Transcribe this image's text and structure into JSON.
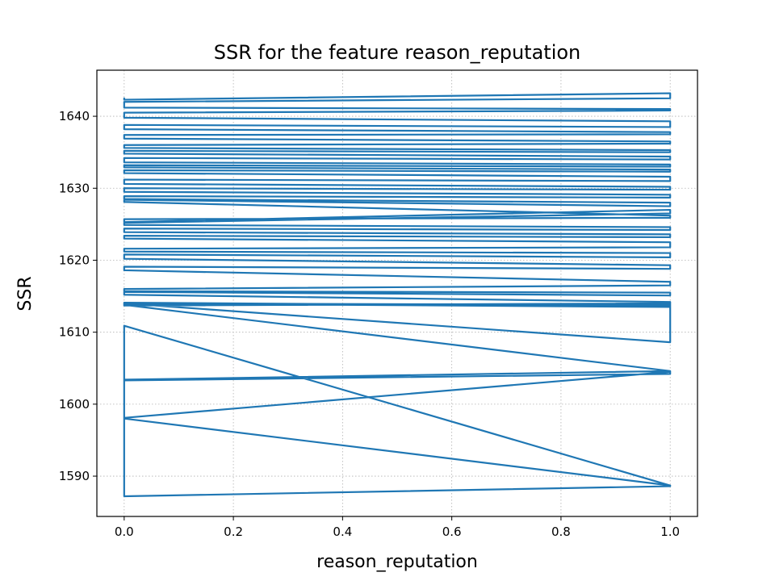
{
  "chart_data": {
    "type": "line",
    "title": "SSR for the feature reason_reputation",
    "xlabel": "reason_reputation",
    "ylabel": "SSR",
    "xlim": [
      -0.05,
      1.05
    ],
    "ylim": [
      1584.4,
      1646.4
    ],
    "xticks": [
      0.0,
      0.2,
      0.4,
      0.6,
      0.8,
      1.0
    ],
    "xtick_labels": [
      "0.0",
      "0.2",
      "0.4",
      "0.6",
      "0.8",
      "1.0"
    ],
    "yticks": [
      1590,
      1600,
      1610,
      1620,
      1630,
      1640
    ],
    "ytick_labels": [
      "1590",
      "1600",
      "1610",
      "1620",
      "1630",
      "1640"
    ],
    "grid": true,
    "legend": "none",
    "color": "#1f77b4",
    "series": [
      {
        "x": [
          0,
          0,
          1,
          1,
          0,
          0,
          1,
          1,
          0,
          0,
          1,
          1,
          0,
          0,
          1,
          1,
          0,
          0,
          1,
          1,
          0,
          0,
          1,
          1,
          0,
          0,
          1,
          1,
          0,
          0,
          1,
          1,
          0,
          0,
          1,
          1,
          0,
          0,
          1,
          1,
          0,
          0,
          1,
          1,
          0,
          0,
          1,
          1,
          0,
          0,
          1,
          1,
          0,
          0,
          1,
          1,
          0,
          0,
          1,
          1,
          0,
          0,
          1,
          1,
          0,
          0,
          1,
          1,
          0,
          0,
          1,
          1,
          0,
          0,
          1,
          1,
          0,
          0,
          1,
          1,
          0,
          0,
          1,
          1,
          0,
          0,
          1,
          1,
          0,
          0,
          1,
          1,
          0,
          0,
          1,
          1,
          0,
          0,
          1,
          1,
          0,
          0,
          1,
          1,
          0,
          0,
          1,
          1,
          0,
          0,
          1,
          1,
          0,
          0,
          1,
          1,
          0,
          0,
          1,
          1
        ],
        "y": [
          1642.5,
          1642.3,
          1643.2,
          1642.5,
          1642.0,
          1641.2,
          1641.0,
          1640.8,
          1640.5,
          1639.8,
          1639.3,
          1638.5,
          1638.8,
          1638.2,
          1637.8,
          1637.5,
          1637.4,
          1636.9,
          1636.5,
          1636.2,
          1636.0,
          1635.6,
          1635.3,
          1635.0,
          1635.2,
          1634.8,
          1634.4,
          1634.0,
          1634.2,
          1633.6,
          1633.3,
          1633.0,
          1633.2,
          1632.9,
          1632.6,
          1632.3,
          1632.5,
          1632.1,
          1631.6,
          1631.0,
          1631.2,
          1630.6,
          1630.2,
          1629.8,
          1630.0,
          1629.5,
          1629.1,
          1628.7,
          1628.9,
          1628.5,
          1628.0,
          1627.5,
          1628.4,
          1628.1,
          1626.2,
          1625.9,
          1625.7,
          1625.3,
          1627.0,
          1626.5,
          1625.2,
          1624.9,
          1624.6,
          1624.2,
          1624.4,
          1623.9,
          1623.6,
          1623.2,
          1623.4,
          1623.0,
          1622.5,
          1621.8,
          1621.6,
          1621.2,
          1621.0,
          1620.4,
          1620.8,
          1620.2,
          1619.3,
          1618.8,
          1619.1,
          1618.6,
          1617.0,
          1616.5,
          1616.0,
          1615.7,
          1615.5,
          1615.1,
          1615.6,
          1615.2,
          1614.2,
          1613.8,
          1614.0,
          1613.7,
          1614.0,
          1613.5,
          1614.0,
          1613.9,
          1613.8,
          1613.6,
          1614.1,
          1614.0,
          1613.7,
          1608.6,
          1614.0,
          1613.8,
          1604.6,
          1604.2,
          1603.3,
          1603.4,
          1604.6,
          1604.5,
          1598.1,
          1598.0,
          1588.7,
          1588.6,
          1587.2,
          1610.9,
          1588.7,
          1588.7
        ]
      }
    ]
  }
}
